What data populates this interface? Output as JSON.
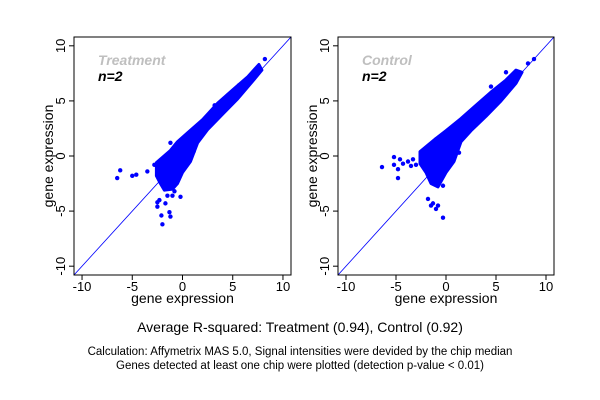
{
  "chart_data": [
    {
      "type": "scatter",
      "panel_label": "Treatment",
      "n_label": "n=2",
      "xlabel": "gene expression",
      "ylabel": "gene expression",
      "xlim": [
        -10.8,
        10.8
      ],
      "ylim": [
        -10.8,
        10.8
      ],
      "xticks": [
        -10,
        -5,
        0,
        5,
        10
      ],
      "yticks": [
        -10,
        -5,
        0,
        5,
        10
      ],
      "reference_line": "y=x",
      "point_color": "#0000ff",
      "label_color": "#bfbfbf",
      "dense_cloud_envelope": [
        [
          -2.6,
          -0.6
        ],
        [
          -1.2,
          0.5
        ],
        [
          -0.5,
          1.3
        ],
        [
          0.5,
          2.1
        ],
        [
          2,
          3.3
        ],
        [
          3.5,
          4.8
        ],
        [
          5,
          6
        ],
        [
          6.5,
          7.2
        ],
        [
          7.6,
          8.3
        ],
        [
          7.9,
          7.8
        ],
        [
          7,
          6.8
        ],
        [
          5.5,
          5.2
        ],
        [
          4,
          3.8
        ],
        [
          2.5,
          2.4
        ],
        [
          1.5,
          1.2
        ],
        [
          0.8,
          -0.5
        ],
        [
          0,
          -1.5
        ],
        [
          -0.5,
          -2.5
        ],
        [
          -1,
          -3
        ],
        [
          -1.8,
          -3.1
        ],
        [
          -2.2,
          -2.5
        ],
        [
          -2.6,
          -1.8
        ]
      ],
      "points": [
        [
          -6.5,
          -2.0
        ],
        [
          -6.2,
          -1.3
        ],
        [
          -5.0,
          -1.8
        ],
        [
          -4.6,
          -1.7
        ],
        [
          -3.5,
          -1.4
        ],
        [
          -2.8,
          -0.8
        ],
        [
          -2.5,
          -4.2
        ],
        [
          -2.5,
          -4.6
        ],
        [
          -2.3,
          -4.0
        ],
        [
          -2.1,
          -5.4
        ],
        [
          -2.0,
          -6.2
        ],
        [
          -1.7,
          -4.3
        ],
        [
          -1.3,
          -5.1
        ],
        [
          -1.2,
          -5.5
        ],
        [
          -1.0,
          -3.6
        ],
        [
          -1.5,
          -3.6
        ],
        [
          -0.8,
          -3.2
        ],
        [
          -1.2,
          1.2
        ],
        [
          -0.2,
          -3.7
        ],
        [
          8.2,
          8.8
        ],
        [
          3.2,
          4.6
        ],
        [
          2.0,
          2.1
        ],
        [
          5.6,
          6.4
        ],
        [
          1.1,
          0.4
        ],
        [
          4.5,
          5.5
        ]
      ]
    },
    {
      "type": "scatter",
      "panel_label": "Control",
      "n_label": "n=2",
      "xlabel": "gene expression",
      "ylabel": "gene expression",
      "xlim": [
        -10.8,
        10.8
      ],
      "ylim": [
        -10.8,
        10.8
      ],
      "xticks": [
        -10,
        -5,
        0,
        5,
        10
      ],
      "yticks": [
        -10,
        -5,
        0,
        5,
        10
      ],
      "reference_line": "y=x",
      "point_color": "#0000ff",
      "label_color": "#bfbfbf",
      "dense_cloud_envelope": [
        [
          -2.6,
          0.4
        ],
        [
          -1,
          1.6
        ],
        [
          0,
          2.3
        ],
        [
          1.5,
          3.4
        ],
        [
          3,
          4.6
        ],
        [
          4.5,
          5.8
        ],
        [
          6,
          6.9
        ],
        [
          7,
          7.8
        ],
        [
          7.6,
          7.6
        ],
        [
          7,
          6.6
        ],
        [
          5.5,
          5
        ],
        [
          4,
          3.6
        ],
        [
          2.5,
          2.3
        ],
        [
          1.5,
          1.3
        ],
        [
          0.8,
          -0.5
        ],
        [
          0,
          -1.5
        ],
        [
          -0.8,
          -2.8
        ],
        [
          -1.5,
          -2.5
        ],
        [
          -2,
          -1.5
        ],
        [
          -2.6,
          -0.7
        ]
      ],
      "points": [
        [
          -6.4,
          -1.0
        ],
        [
          -5.2,
          -0.1
        ],
        [
          -5.2,
          -0.8
        ],
        [
          -4.8,
          -1.2
        ],
        [
          -4.6,
          -0.3
        ],
        [
          -4.8,
          -2.0
        ],
        [
          -4.3,
          -0.7
        ],
        [
          -3.8,
          -0.5
        ],
        [
          -3.5,
          -0.9
        ],
        [
          -3.3,
          -0.3
        ],
        [
          -3.0,
          -0.8
        ],
        [
          -1.8,
          -3.9
        ],
        [
          -1.5,
          -4.5
        ],
        [
          -1.3,
          -4.3
        ],
        [
          -1.0,
          -4.8
        ],
        [
          -0.8,
          -4.5
        ],
        [
          -0.3,
          -5.6
        ],
        [
          -0.3,
          -2.7
        ],
        [
          -1.0,
          1.5
        ],
        [
          4.5,
          6.3
        ],
        [
          6.0,
          7.6
        ],
        [
          8.2,
          8.4
        ],
        [
          8.8,
          8.8
        ],
        [
          2.8,
          3.4
        ],
        [
          1.3,
          0.3
        ]
      ]
    }
  ],
  "subtitle": "Average R-squared: Treatment (0.94), Control (0.92)",
  "caption_line1": "Calculation: Affymetrix MAS 5.0, Signal intensities were devided by the chip median",
  "caption_line2": "Genes detected at least one chip were plotted (detection p-value < 0.01)"
}
